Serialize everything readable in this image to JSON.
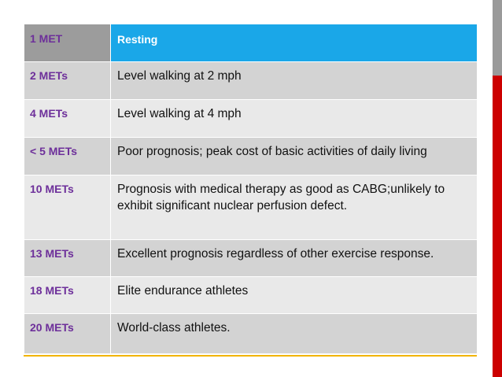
{
  "table": {
    "rows": [
      {
        "met": "1 MET",
        "activity": "Resting"
      },
      {
        "met": "2 METs",
        "activity": "Level walking at 2 mph"
      },
      {
        "met": "4 METs",
        "activity": "Level walking at 4 mph"
      },
      {
        "met": "< 5 METs",
        "activity": "Poor prognosis; peak cost of basic activities of daily living"
      },
      {
        "met": "10 METs",
        "activity": "Prognosis with medical therapy as good as CABG;unlikely to exhibit significant nuclear perfusion defect."
      },
      {
        "met": "13 METs",
        "activity": "Excellent prognosis regardless of other exercise response."
      },
      {
        "met": "18 METs",
        "activity": "Elite endurance athletes"
      },
      {
        "met": "20 METs",
        "activity": "World-class athletes."
      }
    ]
  },
  "colors": {
    "header_accent": "#1aa7e8",
    "met_text": "#6d2f9a",
    "side_bar_red": "#cc0000",
    "bottom_rule": "#f2b400"
  }
}
